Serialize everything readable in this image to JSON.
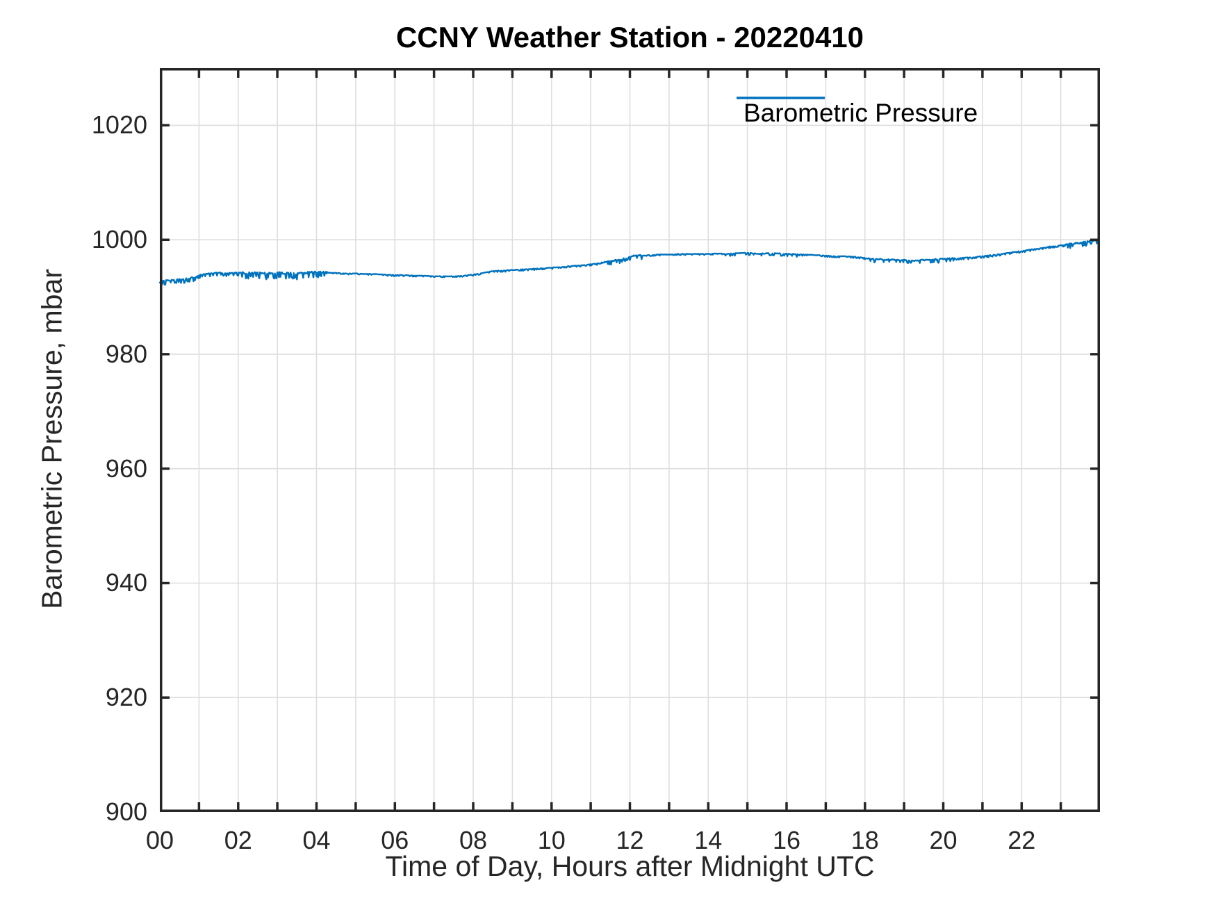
{
  "figure": {
    "background": "#ffffff"
  },
  "chart_data": {
    "type": "line",
    "title": "CCNY Weather Station - 20220410",
    "xlabel": "Time of Day, Hours after Midnight UTC",
    "ylabel": "Barometric Pressure, mbar",
    "xlim": [
      0,
      24
    ],
    "ylim": [
      900,
      1030
    ],
    "x_major_tick_hours": [
      0,
      2,
      4,
      6,
      8,
      10,
      12,
      14,
      16,
      18,
      20,
      22
    ],
    "x_major_tick_labels": [
      "00",
      "02",
      "04",
      "06",
      "08",
      "10",
      "12",
      "14",
      "16",
      "18",
      "20",
      "22"
    ],
    "x_minor_tick_step_hours": 1,
    "y_tick_values": [
      900,
      920,
      940,
      960,
      980,
      1000,
      1020
    ],
    "grid": true,
    "box": true,
    "legend": {
      "label": "Barometric Pressure",
      "position": "northeast",
      "boxed": false
    },
    "colors": {
      "line": "#0072BD",
      "axis": "#262626",
      "grid": "#dedede",
      "title": "#000000",
      "tick_labels": "#262626"
    },
    "series": [
      {
        "name": "Barometric Pressure",
        "units": "mbar",
        "points": [
          [
            0.0,
            992.5
          ],
          [
            0.15,
            992.8
          ],
          [
            0.3,
            992.9
          ],
          [
            0.45,
            993.1
          ],
          [
            0.6,
            993.0
          ],
          [
            0.75,
            993.2
          ],
          [
            0.9,
            993.4
          ],
          [
            1.0,
            993.8
          ],
          [
            1.15,
            994.0
          ],
          [
            1.3,
            994.1
          ],
          [
            1.5,
            994.2
          ],
          [
            1.75,
            994.1
          ],
          [
            2.0,
            994.2
          ],
          [
            2.25,
            994.1
          ],
          [
            2.5,
            994.2
          ],
          [
            2.75,
            994.0
          ],
          [
            3.0,
            994.2
          ],
          [
            3.25,
            994.1
          ],
          [
            3.5,
            994.0
          ],
          [
            3.75,
            994.2
          ],
          [
            4.0,
            994.3
          ],
          [
            4.25,
            994.2
          ],
          [
            4.5,
            994.2
          ],
          [
            4.75,
            994.1
          ],
          [
            5.0,
            994.1
          ],
          [
            5.25,
            994.0
          ],
          [
            5.5,
            994.0
          ],
          [
            5.75,
            993.9
          ],
          [
            6.0,
            993.8
          ],
          [
            6.25,
            993.8
          ],
          [
            6.5,
            993.7
          ],
          [
            6.75,
            993.7
          ],
          [
            7.0,
            993.6
          ],
          [
            7.25,
            993.6
          ],
          [
            7.5,
            993.6
          ],
          [
            7.75,
            993.7
          ],
          [
            8.0,
            993.9
          ],
          [
            8.25,
            994.2
          ],
          [
            8.5,
            994.5
          ],
          [
            8.75,
            994.6
          ],
          [
            9.0,
            994.7
          ],
          [
            9.25,
            994.8
          ],
          [
            9.5,
            994.9
          ],
          [
            9.75,
            995.0
          ],
          [
            10.0,
            995.1
          ],
          [
            10.25,
            995.2
          ],
          [
            10.5,
            995.4
          ],
          [
            10.75,
            995.5
          ],
          [
            11.0,
            995.7
          ],
          [
            11.25,
            995.9
          ],
          [
            11.5,
            996.2
          ],
          [
            11.75,
            996.5
          ],
          [
            12.0,
            996.9
          ],
          [
            12.15,
            997.3
          ],
          [
            12.3,
            997.2
          ],
          [
            12.5,
            997.3
          ],
          [
            12.75,
            997.4
          ],
          [
            13.0,
            997.4
          ],
          [
            13.25,
            997.5
          ],
          [
            13.5,
            997.5
          ],
          [
            13.75,
            997.5
          ],
          [
            14.0,
            997.5
          ],
          [
            14.25,
            997.6
          ],
          [
            14.5,
            997.5
          ],
          [
            14.75,
            997.6
          ],
          [
            15.0,
            997.7
          ],
          [
            15.25,
            997.5
          ],
          [
            15.5,
            997.6
          ],
          [
            15.75,
            997.6
          ],
          [
            16.0,
            997.5
          ],
          [
            16.25,
            997.4
          ],
          [
            16.5,
            997.4
          ],
          [
            16.75,
            997.3
          ],
          [
            17.0,
            997.2
          ],
          [
            17.25,
            997.1
          ],
          [
            17.5,
            997.1
          ],
          [
            17.75,
            997.0
          ],
          [
            18.0,
            996.8
          ],
          [
            18.25,
            996.6
          ],
          [
            18.5,
            996.5
          ],
          [
            18.75,
            996.5
          ],
          [
            19.0,
            996.4
          ],
          [
            19.25,
            996.3
          ],
          [
            19.5,
            996.4
          ],
          [
            19.75,
            996.5
          ],
          [
            20.0,
            996.6
          ],
          [
            20.25,
            996.7
          ],
          [
            20.5,
            996.8
          ],
          [
            20.75,
            996.9
          ],
          [
            21.0,
            997.1
          ],
          [
            21.25,
            997.3
          ],
          [
            21.5,
            997.5
          ],
          [
            21.75,
            997.8
          ],
          [
            22.0,
            998.0
          ],
          [
            22.25,
            998.3
          ],
          [
            22.5,
            998.5
          ],
          [
            22.75,
            998.8
          ],
          [
            23.0,
            999.0
          ],
          [
            23.25,
            999.2
          ],
          [
            23.5,
            999.4
          ],
          [
            23.75,
            999.7
          ],
          [
            23.85,
            999.9
          ],
          [
            23.97,
            1000.1
          ]
        ]
      }
    ],
    "noise": {
      "step_hours": 0.02,
      "zones": [
        [
          0.0,
          1.15,
          0.45
        ],
        [
          1.15,
          2.1,
          0.35
        ],
        [
          2.1,
          4.3,
          0.65
        ],
        [
          4.3,
          8.1,
          0.12
        ],
        [
          8.1,
          11.2,
          0.15
        ],
        [
          11.2,
          12.35,
          0.4
        ],
        [
          12.35,
          14.4,
          0.12
        ],
        [
          14.4,
          16.3,
          0.25
        ],
        [
          16.3,
          18.0,
          0.15
        ],
        [
          18.0,
          20.3,
          0.4
        ],
        [
          20.3,
          23.1,
          0.18
        ],
        [
          23.1,
          24.0,
          0.5
        ]
      ]
    }
  }
}
